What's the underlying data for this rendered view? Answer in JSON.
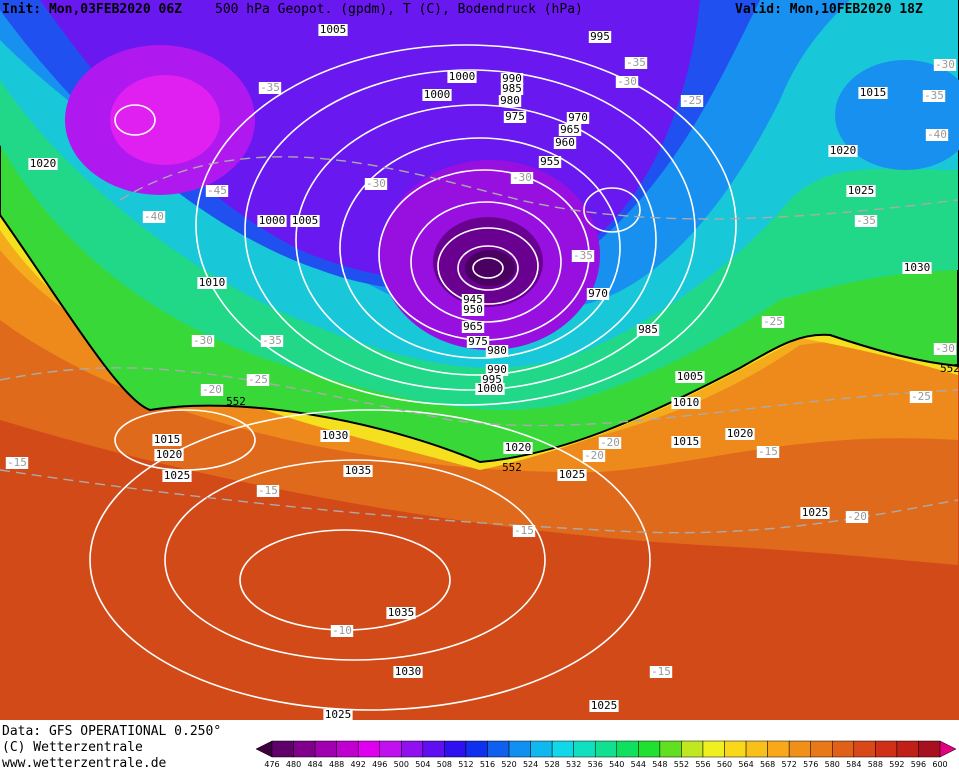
{
  "header": {
    "init": "Init: Mon,03FEB2020 06Z",
    "title": "500 hPa Geopot. (gpdm), T (C), Bodendruck (hPa)",
    "valid": "Valid: Mon,10FEB2020 18Z"
  },
  "footer": {
    "source": "Data: GFS OPERATIONAL 0.250°",
    "copyright": "(C) Wetterzentrale",
    "url": "www.wetterzentrale.de"
  },
  "legend": {
    "levels": [
      "476",
      "480",
      "484",
      "488",
      "492",
      "496",
      "500",
      "504",
      "508",
      "512",
      "516",
      "520",
      "524",
      "528",
      "532",
      "536",
      "540",
      "544",
      "548",
      "552",
      "556",
      "560",
      "564",
      "568",
      "572",
      "576",
      "580",
      "584",
      "588",
      "592",
      "596",
      "600"
    ],
    "colors": [
      "#3c0040",
      "#60006a",
      "#80008c",
      "#a000b0",
      "#c000d0",
      "#e000f0",
      "#c010f0",
      "#9010f0",
      "#6010f0",
      "#3010f0",
      "#1030f0",
      "#1060f0",
      "#1090f0",
      "#10b8f0",
      "#10d8e8",
      "#10e0c0",
      "#10e090",
      "#10e060",
      "#20e030",
      "#60e020",
      "#c0e820",
      "#f0f020",
      "#f8d818",
      "#f8c018",
      "#f8a818",
      "#f09018",
      "#e87818",
      "#e06018",
      "#d84818",
      "#d03018",
      "#c02018",
      "#a81020",
      "#e00080"
    ]
  },
  "isobar_labels": [
    "1005",
    "995",
    "1000",
    "990",
    "985",
    "980",
    "1000",
    "975",
    "970",
    "965",
    "960",
    "955",
    "1020",
    "1000",
    "1005",
    "1010",
    "970",
    "945",
    "950",
    "965",
    "985",
    "975",
    "980",
    "990",
    "995",
    "1000",
    "1005",
    "1010",
    "1015",
    "1020",
    "1030",
    "1020",
    "1015",
    "1020",
    "1025",
    "1035",
    "1025",
    "1025",
    "1035",
    "1030",
    "1025",
    "1025",
    "1015",
    "1020",
    "1025",
    "1030"
  ],
  "temperature_labels": [
    "-35",
    "-35",
    "-30",
    "-25",
    "-30",
    "-35",
    "-40",
    "-45",
    "-40",
    "-30",
    "-30",
    "-35",
    "-35",
    "-30",
    "-35",
    "-25",
    "-20",
    "-25",
    "-30",
    "-25",
    "-15",
    "-15",
    "-20",
    "-20",
    "-15",
    "-20",
    "-15",
    "-10",
    "-15"
  ],
  "height_labels": [
    "552",
    "552",
    "552"
  ]
}
